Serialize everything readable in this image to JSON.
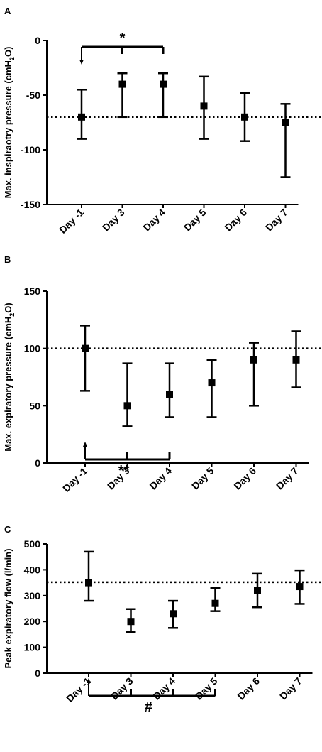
{
  "chart_data": [
    {
      "panel": "A",
      "type": "scatter",
      "ylabel_main": "Max. inspiraotry pressure  (cmH",
      "ylabel_sub": "2",
      "ylabel_tail": "O)",
      "ylim": [
        -150,
        0
      ],
      "yticks": [
        0,
        -50,
        -100,
        -150
      ],
      "ytick_labels": [
        "0",
        "-50",
        "-100",
        "-150"
      ],
      "categories": [
        "Day -1",
        "Day 3",
        "Day 4",
        "Day 5",
        "Day 6",
        "Day 7"
      ],
      "medians": [
        -70,
        -40,
        -40,
        -60,
        -70,
        -75
      ],
      "lower": [
        -90,
        -70,
        -70,
        -90,
        -92,
        -125
      ],
      "upper": [
        -45,
        -30,
        -30,
        -33,
        -48,
        -58
      ],
      "reference_line": -70,
      "annotation": {
        "text": "*",
        "from": 0,
        "to": [
          1,
          2
        ]
      }
    },
    {
      "panel": "B",
      "type": "scatter",
      "ylabel_main": "Max. expiratory pressure  (cmH",
      "ylabel_sub": "2",
      "ylabel_tail": "O)",
      "ylim": [
        0,
        150
      ],
      "yticks": [
        0,
        50,
        100,
        150
      ],
      "ytick_labels": [
        "0",
        "50",
        "100",
        "150"
      ],
      "categories": [
        "Day -1",
        "Day 3",
        "Day 4",
        "Day 5",
        "Day 6",
        "Day 7"
      ],
      "medians": [
        100,
        50,
        60,
        70,
        90,
        90
      ],
      "lower": [
        63,
        32,
        40,
        40,
        50,
        66
      ],
      "upper": [
        120,
        87,
        87,
        90,
        105,
        115
      ],
      "reference_line": 100,
      "annotation": {
        "text": "**",
        "from": 0,
        "to": [
          1,
          2
        ]
      }
    },
    {
      "panel": "C",
      "type": "scatter",
      "ylabel_main": "Peak expiratory flow (l/min)",
      "ylabel_sub": "",
      "ylabel_tail": "",
      "ylim": [
        0,
        500
      ],
      "yticks": [
        0,
        100,
        200,
        300,
        400,
        500
      ],
      "ytick_labels": [
        "0",
        "100",
        "200",
        "300",
        "400",
        "500"
      ],
      "categories": [
        "Day -1",
        "Day 3",
        "Day 4",
        "Day 5",
        "Day 6",
        "Day 7"
      ],
      "medians": [
        350,
        200,
        230,
        270,
        320,
        335
      ],
      "lower": [
        280,
        160,
        175,
        240,
        255,
        268
      ],
      "upper": [
        470,
        248,
        280,
        330,
        385,
        398
      ],
      "reference_line": 352,
      "annotation": {
        "text": "#",
        "from": 0,
        "to": [
          1,
          2,
          3
        ]
      }
    }
  ]
}
